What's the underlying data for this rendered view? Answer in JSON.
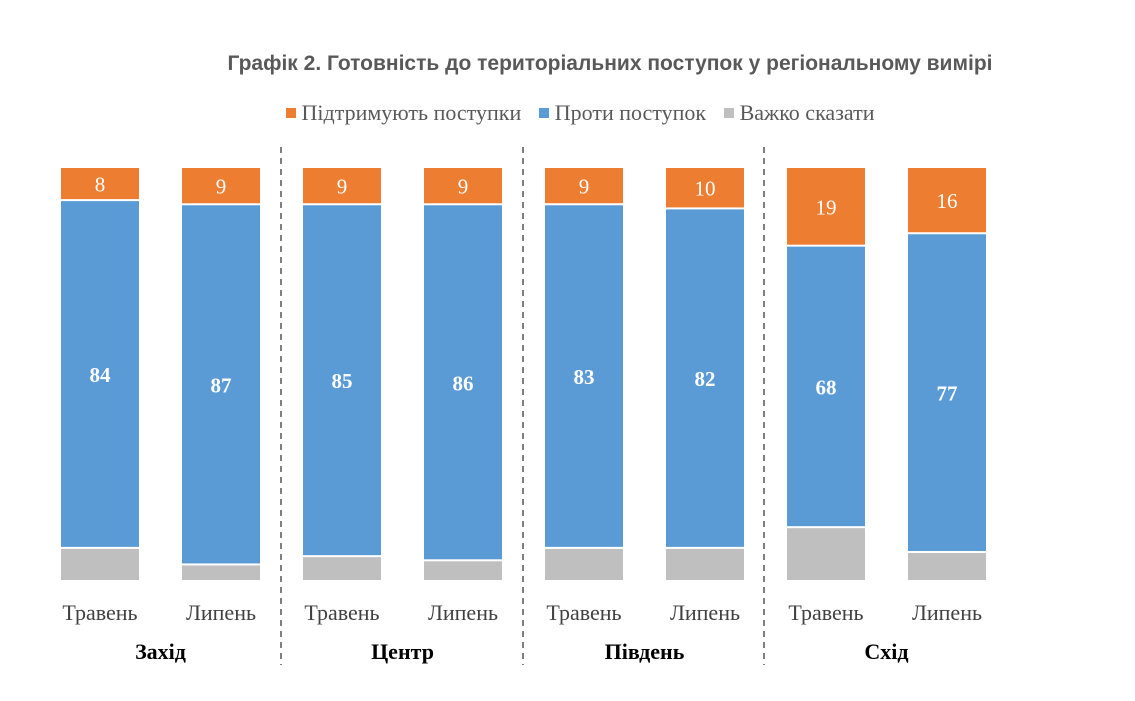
{
  "chart_data": {
    "type": "bar",
    "stacked": true,
    "title": "Графік 2. Готовність до територіальних поступок у регіональному вимірі",
    "legend_placement": "top",
    "groups": [
      {
        "name": "Захід",
        "categories": [
          "Травень",
          "Липень"
        ]
      },
      {
        "name": "Центр",
        "categories": [
          "Травень",
          "Липень"
        ]
      },
      {
        "name": "Південь",
        "categories": [
          "Травень",
          "Липень"
        ]
      },
      {
        "name": "Схід",
        "categories": [
          "Травень",
          "Липень"
        ]
      }
    ],
    "series": [
      {
        "name": "Підтримують поступки",
        "color": "#ED7D31",
        "values": [
          8,
          9,
          9,
          9,
          9,
          10,
          19,
          16
        ],
        "labeled": true
      },
      {
        "name": "Проти поступок",
        "color": "#5B9BD5",
        "values": [
          84,
          87,
          85,
          86,
          83,
          82,
          68,
          77
        ],
        "labeled": true
      },
      {
        "name": "Важко сказати",
        "color": "#BFBFBF",
        "values": [
          8,
          4,
          6,
          5,
          8,
          8,
          13,
          7
        ],
        "labeled": false
      }
    ],
    "ylim": [
      0,
      100
    ],
    "grid": false
  }
}
